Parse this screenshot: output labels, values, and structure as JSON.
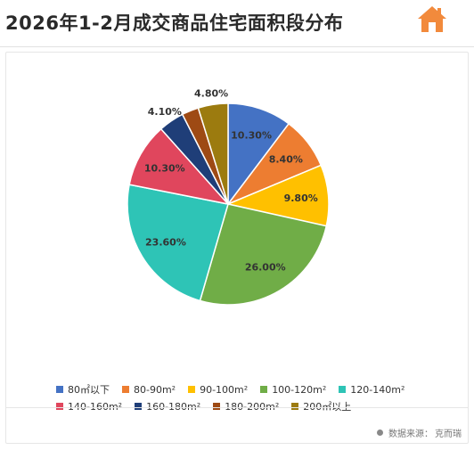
{
  "header": {
    "title": "2026年1-2月成交商品住宅面积段分布"
  },
  "icons": {
    "logo": "house-icon",
    "logo_color": "#f28a3c"
  },
  "footer": {
    "source_prefix": "数据来源：",
    "source_name": "克而瑞"
  },
  "chart_data": {
    "type": "pie",
    "title": "",
    "labels": [
      "80㎡以下",
      "80-90m²",
      "90-100m²",
      "100-120m²",
      "120-140m²",
      "140-160m²",
      "160-180m²",
      "180-200m²",
      "200㎡以上"
    ],
    "values": [
      10.3,
      8.4,
      9.8,
      26.0,
      23.6,
      10.3,
      4.1,
      2.7,
      4.8
    ],
    "value_labels": [
      "10.30%",
      "8.40%",
      "9.80%",
      "26.00%",
      "23.60%",
      "10.30%",
      "4.10%",
      "",
      "4.80%"
    ],
    "colors": [
      "#4472c4",
      "#ed7d31",
      "#ffc000",
      "#70ad47",
      "#2ec4b6",
      "#e0465d",
      "#1f3e78",
      "#9e4a14",
      "#9c7b0f"
    ],
    "legend_position": "bottom",
    "start_angle_deg": 0,
    "direction": "clockwise"
  }
}
